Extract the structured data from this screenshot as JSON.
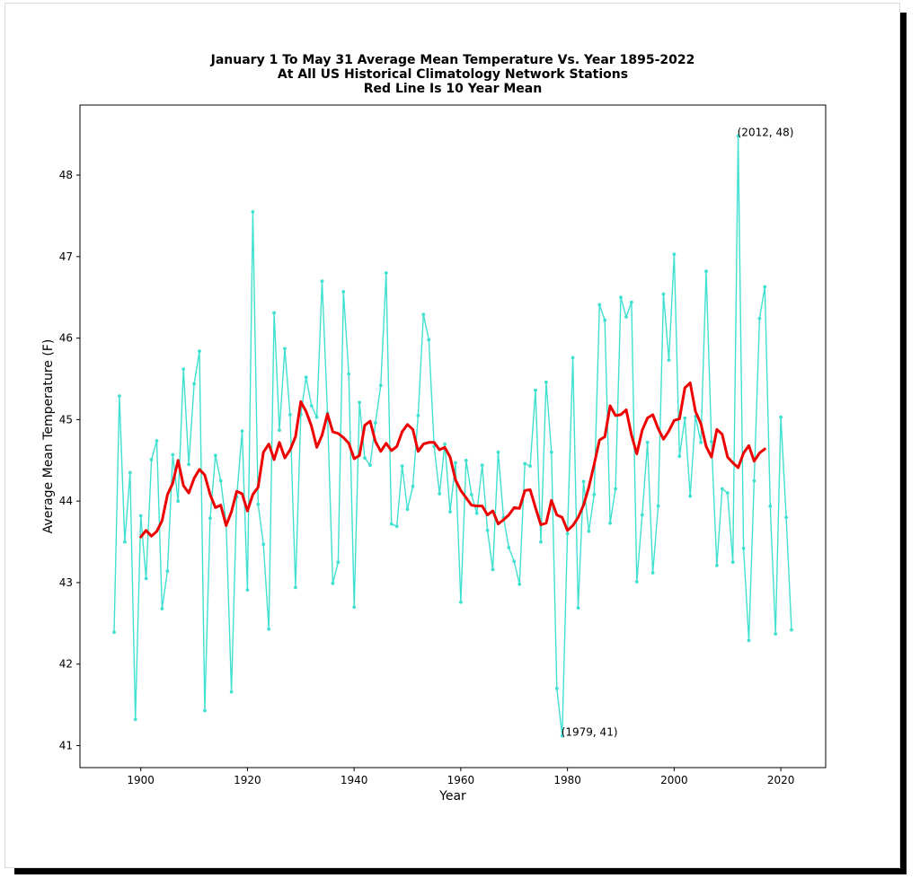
{
  "chart_data": {
    "type": "line",
    "title": "January 1 To May 31 Average Mean Temperature Vs. Year 1895-2022",
    "subtitle": "At All US Historical Climatology Network Stations",
    "subtitle2": "Red Line Is 10 Year Mean",
    "xlabel": "Year",
    "ylabel": "Average Mean Temperature (F)",
    "xlim": [
      1888.6,
      2028.4
    ],
    "ylim": [
      40.73,
      48.86
    ],
    "xticks": [
      1900,
      1920,
      1940,
      1960,
      1980,
      2000,
      2020
    ],
    "yticks": [
      41,
      42,
      43,
      44,
      45,
      46,
      47,
      48
    ],
    "grid": false,
    "colors": {
      "raw": "#40e0d0",
      "mean": "#ee0000"
    },
    "annotations": [
      {
        "text": "(2012, 48)",
        "x": 2012,
        "y": 48.48
      },
      {
        "text": "(1979, 41)",
        "x": 1979,
        "y": 41.12
      }
    ],
    "series": [
      {
        "x": [
          1895,
          1896,
          1897,
          1898,
          1899,
          1900,
          1901,
          1902,
          1903,
          1904,
          1905,
          1906,
          1907,
          1908,
          1909,
          1910,
          1911,
          1912,
          1913,
          1914,
          1915,
          1916,
          1917,
          1918,
          1919,
          1920,
          1921,
          1922,
          1923,
          1924,
          1925,
          1926,
          1927,
          1928,
          1929,
          1930,
          1931,
          1932,
          1933,
          1934,
          1935,
          1936,
          1937,
          1938,
          1939,
          1940,
          1941,
          1942,
          1943,
          1944,
          1945,
          1946,
          1947,
          1948,
          1949,
          1950,
          1951,
          1952,
          1953,
          1954,
          1955,
          1956,
          1957,
          1958,
          1959,
          1960,
          1961,
          1962,
          1963,
          1964,
          1965,
          1966,
          1967,
          1968,
          1969,
          1970,
          1971,
          1972,
          1973,
          1974,
          1975,
          1976,
          1977,
          1978,
          1979,
          1980,
          1981,
          1982,
          1983,
          1984,
          1985,
          1986,
          1987,
          1988,
          1989,
          1990,
          1991,
          1992,
          1993,
          1994,
          1995,
          1996,
          1997,
          1998,
          1999,
          2000,
          2001,
          2002,
          2003,
          2004,
          2005,
          2006,
          2007,
          2008,
          2009,
          2010,
          2011,
          2012,
          2013,
          2014,
          2015,
          2016,
          2017,
          2018,
          2019,
          2020,
          2021,
          2022
        ],
        "values": [
          42.39,
          45.29,
          43.5,
          44.35,
          41.32,
          43.82,
          43.05,
          44.51,
          44.74,
          42.68,
          43.14,
          44.57,
          44.0,
          45.62,
          44.45,
          45.44,
          45.84,
          41.43,
          43.79,
          44.56,
          44.25,
          43.73,
          41.66,
          44.05,
          44.86,
          42.91,
          47.55,
          43.96,
          43.47,
          42.43,
          46.31,
          44.87,
          45.87,
          45.06,
          42.94,
          45.06,
          45.52,
          45.17,
          45.03,
          46.7,
          45.08,
          42.99,
          43.25,
          46.57,
          45.56,
          42.7,
          45.21,
          44.53,
          44.44,
          44.96,
          45.42,
          46.8,
          43.72,
          43.69,
          44.43,
          43.9,
          44.18,
          45.05,
          46.29,
          45.98,
          44.67,
          44.09,
          44.7,
          43.87,
          44.47,
          42.76,
          44.5,
          44.08,
          43.85,
          44.44,
          43.64,
          43.16,
          44.6,
          43.8,
          43.43,
          43.26,
          42.98,
          44.46,
          44.43,
          45.36,
          43.5,
          45.46,
          44.6,
          41.7,
          41.12,
          43.6,
          45.76,
          42.69,
          44.24,
          43.63,
          44.08,
          46.41,
          46.22,
          43.73,
          44.15,
          46.5,
          46.26,
          46.44,
          43.01,
          43.83,
          44.72,
          43.12,
          43.94,
          46.54,
          45.73,
          47.03,
          44.55,
          45.02,
          44.06,
          45.04,
          44.72,
          46.82,
          44.73,
          43.21,
          44.15,
          44.1,
          43.25,
          48.48,
          43.42,
          42.29,
          44.25,
          46.24,
          46.63,
          43.94,
          42.37,
          45.03,
          43.8,
          42.42
        ]
      },
      {
        "name": "",
        "x": [
          1900,
          1901,
          1902,
          1903,
          1904,
          1905,
          1906,
          1907,
          1908,
          1909,
          1910,
          1911,
          1912,
          1913,
          1914,
          1915,
          1916,
          1917,
          1918,
          1919,
          1920,
          1921,
          1922,
          1923,
          1924,
          1925,
          1926,
          1927,
          1928,
          1929,
          1930,
          1931,
          1932,
          1933,
          1934,
          1935,
          1936,
          1937,
          1938,
          1939,
          1940,
          1941,
          1942,
          1943,
          1944,
          1945,
          1946,
          1947,
          1948,
          1949,
          1950,
          1951,
          1952,
          1953,
          1954,
          1955,
          1956,
          1957,
          1958,
          1959,
          1960,
          1961,
          1962,
          1963,
          1964,
          1965,
          1966,
          1967,
          1968,
          1969,
          1970,
          1971,
          1972,
          1973,
          1974,
          1975,
          1976,
          1977,
          1978,
          1979,
          1980,
          1981,
          1982,
          1983,
          1984,
          1985,
          1986,
          1987,
          1988,
          1989,
          1990,
          1991,
          1992,
          1993,
          1994,
          1995,
          1996,
          1997,
          1998,
          1999,
          2000,
          2001,
          2002,
          2003,
          2004,
          2005,
          2006,
          2007,
          2008,
          2009,
          2010,
          2011,
          2012,
          2013,
          2014,
          2015,
          2016,
          2017
        ],
        "values": [
          43.56,
          43.64,
          43.57,
          43.63,
          43.76,
          44.08,
          44.22,
          44.5,
          44.19,
          44.1,
          44.28,
          44.39,
          44.32,
          44.08,
          43.92,
          43.95,
          43.7,
          43.87,
          44.12,
          44.09,
          43.88,
          44.08,
          44.17,
          44.6,
          44.7,
          44.51,
          44.72,
          44.53,
          44.63,
          44.79,
          45.22,
          45.1,
          44.92,
          44.66,
          44.81,
          45.07,
          44.85,
          44.83,
          44.78,
          44.71,
          44.52,
          44.56,
          44.93,
          44.98,
          44.73,
          44.61,
          44.71,
          44.62,
          44.67,
          44.85,
          44.94,
          44.88,
          44.61,
          44.7,
          44.72,
          44.72,
          44.63,
          44.66,
          44.54,
          44.26,
          44.13,
          44.04,
          43.95,
          43.94,
          43.94,
          43.83,
          43.88,
          43.72,
          43.77,
          43.83,
          43.92,
          43.91,
          44.13,
          44.14,
          43.92,
          43.71,
          43.73,
          44.01,
          43.83,
          43.8,
          43.64,
          43.7,
          43.8,
          43.95,
          44.17,
          44.45,
          44.75,
          44.79,
          45.17,
          45.05,
          45.06,
          45.12,
          44.81,
          44.58,
          44.87,
          45.02,
          45.06,
          44.89,
          44.76,
          44.86,
          44.99,
          45.01,
          45.39,
          45.45,
          45.1,
          44.95,
          44.67,
          44.54,
          44.88,
          44.82,
          44.54,
          44.47,
          44.41,
          44.59,
          44.68,
          44.49,
          44.59,
          44.64
        ]
      }
    ]
  }
}
